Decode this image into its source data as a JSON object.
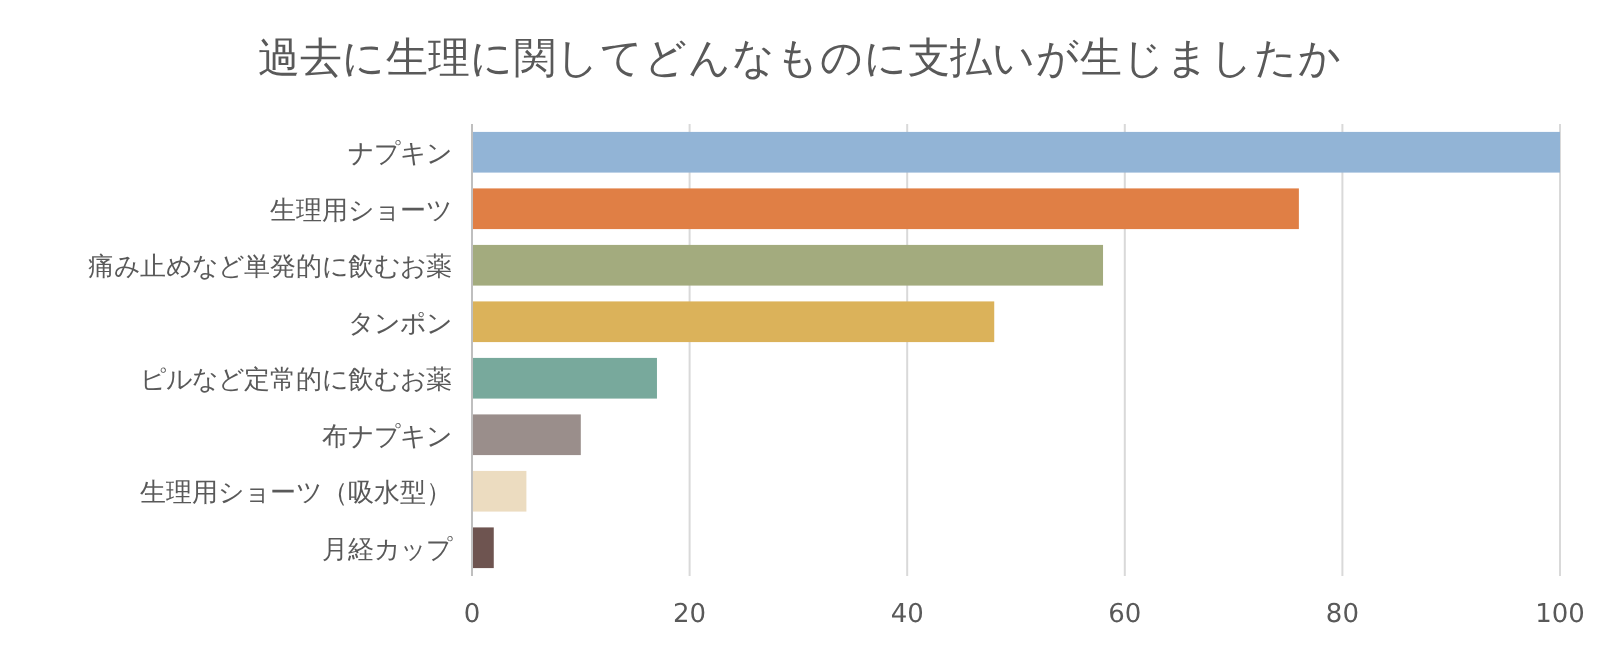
{
  "chart_data": {
    "type": "bar",
    "orientation": "horizontal",
    "title": "過去に生理に関してどんなものに支払いが生じましたか",
    "categories": [
      "ナプキン",
      "生理用ショーツ",
      "痛み止めなど単発的に飲むお薬",
      "タンポン",
      "ピルなど定常的に飲むお薬",
      "布ナプキン",
      "生理用ショーツ（吸水型）",
      "月経カップ"
    ],
    "values": [
      100,
      76,
      58,
      48,
      17,
      10,
      5,
      2
    ],
    "colors": [
      "#92b4d6",
      "#e07f45",
      "#a3ab7e",
      "#dbb25a",
      "#78a99c",
      "#9a8e8b",
      "#ecdcc0",
      "#6e5450"
    ],
    "xlim": [
      0,
      100
    ],
    "xticks": [
      0,
      20,
      40,
      60,
      80,
      100
    ],
    "grid": "x"
  }
}
